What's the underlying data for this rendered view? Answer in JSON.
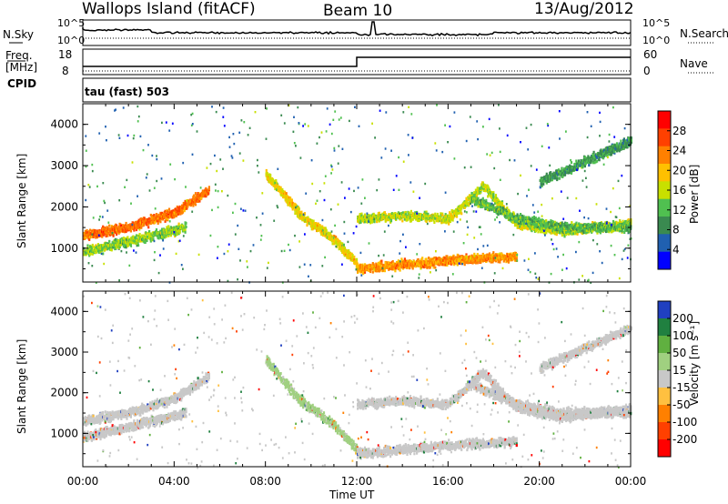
{
  "header": {
    "station": "Wallops Island (fitACF)",
    "beam": "Beam 10",
    "date": "13/Aug/2012"
  },
  "top_panels": {
    "nsky_label": "N.Sky",
    "nsky_ticks": [
      "10^5",
      "10^0"
    ],
    "nsearch_label": "N.Search",
    "nsearch_ticks": [
      "10^5",
      "10^0"
    ],
    "freq_label": "Freq.",
    "freq_unit": "[MHz]",
    "freq_ticks": [
      "18",
      "8"
    ],
    "nave_label": "Nave",
    "nave_ticks": [
      "60",
      "0"
    ],
    "cpid_label": "CPID",
    "cpid_value": "tau (fast) 503"
  },
  "chart_data": [
    {
      "type": "heatmap",
      "name": "power",
      "ylabel": "Slant Range [km]",
      "yticks": [
        "4000",
        "3000",
        "2000",
        "1000"
      ],
      "ylim": [
        180,
        4500
      ],
      "xlim": [
        0,
        24
      ],
      "colorbar_label": "Power [dB]",
      "colorbar_ticks": [
        "28",
        "24",
        "20",
        "16",
        "12",
        "8",
        "4"
      ],
      "colorbar_colors": [
        "#ff0000",
        "#ff4000",
        "#ff8000",
        "#ffc000",
        "#c8e000",
        "#50c050",
        "#3a8a50",
        "#2060b0",
        "#0000ff"
      ],
      "bands": [
        {
          "t": [
            0,
            2,
            4,
            5.5
          ],
          "r": [
            1300,
            1500,
            1850,
            2400
          ],
          "v": 24
        },
        {
          "t": [
            0,
            1.5,
            3,
            4.5
          ],
          "r": [
            900,
            1100,
            1300,
            1500
          ],
          "v": 14
        },
        {
          "t": [
            8,
            9.5,
            11,
            12
          ],
          "r": [
            2800,
            1800,
            1200,
            600
          ],
          "v": 18
        },
        {
          "t": [
            12,
            14,
            16,
            19
          ],
          "r": [
            500,
            600,
            700,
            800
          ],
          "v": 22
        },
        {
          "t": [
            12,
            14,
            16,
            17.5,
            19,
            21,
            24
          ],
          "r": [
            1700,
            1800,
            1700,
            2500,
            1600,
            1400,
            1600
          ],
          "v": 16
        },
        {
          "t": [
            17,
            19,
            21,
            24
          ],
          "r": [
            2200,
            1700,
            1500,
            1500
          ],
          "v": 12
        },
        {
          "t": [
            20,
            22,
            24
          ],
          "r": [
            2600,
            3100,
            3600
          ],
          "v": 10
        }
      ]
    },
    {
      "type": "heatmap",
      "name": "velocity",
      "ylabel": "Slant Range [km]",
      "yticks": [
        "4000",
        "3000",
        "2000",
        "1000"
      ],
      "ylim": [
        180,
        4500
      ],
      "xlim": [
        0,
        24
      ],
      "colorbar_label": "Velocity [m s⁻¹]",
      "colorbar_ticks": [
        "200",
        "100",
        "50",
        "15",
        "-15",
        "-50",
        "-100",
        "-200"
      ],
      "colorbar_colors": [
        "#2040c0",
        "#208040",
        "#60b040",
        "#a0d080",
        "#c8c8c8",
        "#ffc040",
        "#ff8000",
        "#ff4000",
        "#ff0000"
      ],
      "bands": [
        {
          "t": [
            0,
            2,
            4,
            5.5
          ],
          "r": [
            1300,
            1500,
            1850,
            2400
          ],
          "v": 0
        },
        {
          "t": [
            0,
            1.5,
            3,
            4.5
          ],
          "r": [
            900,
            1100,
            1300,
            1500
          ],
          "v": 0
        },
        {
          "t": [
            8,
            9.5,
            11,
            12
          ],
          "r": [
            2800,
            1800,
            1200,
            600
          ],
          "v": 20
        },
        {
          "t": [
            12,
            14,
            16,
            19
          ],
          "r": [
            500,
            600,
            700,
            800
          ],
          "v": 0
        },
        {
          "t": [
            12,
            14,
            16,
            17.5,
            19,
            21,
            24
          ],
          "r": [
            1700,
            1800,
            1700,
            2500,
            1600,
            1400,
            1600
          ],
          "v": 0
        },
        {
          "t": [
            17,
            19,
            21,
            24
          ],
          "r": [
            2200,
            1700,
            1500,
            1500
          ],
          "v": 0
        },
        {
          "t": [
            20,
            22,
            24
          ],
          "r": [
            2600,
            3100,
            3600
          ],
          "v": 0
        }
      ]
    }
  ],
  "x_axis": {
    "ticks": [
      "00:00",
      "04:00",
      "08:00",
      "12:00",
      "16:00",
      "20:00",
      "00:00"
    ],
    "label": "Time UT"
  }
}
